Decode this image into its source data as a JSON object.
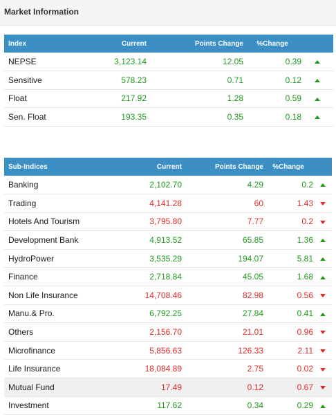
{
  "panel": {
    "title": "Market Information"
  },
  "index_table": {
    "headers": {
      "name": "Index",
      "current": "Current",
      "points": "Points Change",
      "pct": "%Change"
    },
    "rows": [
      {
        "name": "NEPSE",
        "current": "3,123.14",
        "points": "12.05",
        "pct": "0.39",
        "trend": "up"
      },
      {
        "name": "Sensitive",
        "current": "578.23",
        "points": "0.71",
        "pct": "0.12",
        "trend": "up"
      },
      {
        "name": "Float",
        "current": "217.92",
        "points": "1.28",
        "pct": "0.59",
        "trend": "up"
      },
      {
        "name": "Sen. Float",
        "current": "193.35",
        "points": "0.35",
        "pct": "0.18",
        "trend": "up"
      }
    ]
  },
  "subindex_table": {
    "headers": {
      "name": "Sub-Indices",
      "current": "Current",
      "points": "Points Change",
      "pct": "%Change"
    },
    "rows": [
      {
        "name": "Banking",
        "current": "2,102.70",
        "points": "4.29",
        "pct": "0.2",
        "trend": "up"
      },
      {
        "name": "Trading",
        "current": "4,141.28",
        "points": "60",
        "pct": "1.43",
        "trend": "down"
      },
      {
        "name": "Hotels And Tourism",
        "current": "3,795.80",
        "points": "7.77",
        "pct": "0.2",
        "trend": "down"
      },
      {
        "name": "Development Bank",
        "current": "4,913.52",
        "points": "65.85",
        "pct": "1.36",
        "trend": "up"
      },
      {
        "name": "HydroPower",
        "current": "3,535.29",
        "points": "194.07",
        "pct": "5.81",
        "trend": "up"
      },
      {
        "name": "Finance",
        "current": "2,718.84",
        "points": "45.05",
        "pct": "1.68",
        "trend": "up"
      },
      {
        "name": "Non Life Insurance",
        "current": "14,708.46",
        "points": "82.98",
        "pct": "0.56",
        "trend": "down"
      },
      {
        "name": "Manu.& Pro.",
        "current": "6,792.25",
        "points": "27.84",
        "pct": "0.41",
        "trend": "up"
      },
      {
        "name": "Others",
        "current": "2,156.70",
        "points": "21.01",
        "pct": "0.96",
        "trend": "down"
      },
      {
        "name": "Microfinance",
        "current": "5,856.63",
        "points": "126.33",
        "pct": "2.11",
        "trend": "down"
      },
      {
        "name": "Life Insurance",
        "current": "18,084.89",
        "points": "2.75",
        "pct": "0.02",
        "trend": "down"
      },
      {
        "name": "Mutual Fund",
        "current": "17.49",
        "points": "0.12",
        "pct": "0.67",
        "trend": "down",
        "highlight": true
      },
      {
        "name": "Investment",
        "current": "117.62",
        "points": "0.34",
        "pct": "0.29",
        "trend": "up"
      }
    ]
  },
  "colors": {
    "header_bg": "#3b8fc4",
    "up": "#1e9b1e",
    "down": "#e02a2a"
  },
  "icons": {
    "up": "triangle-up-icon",
    "down": "triangle-down-icon"
  }
}
